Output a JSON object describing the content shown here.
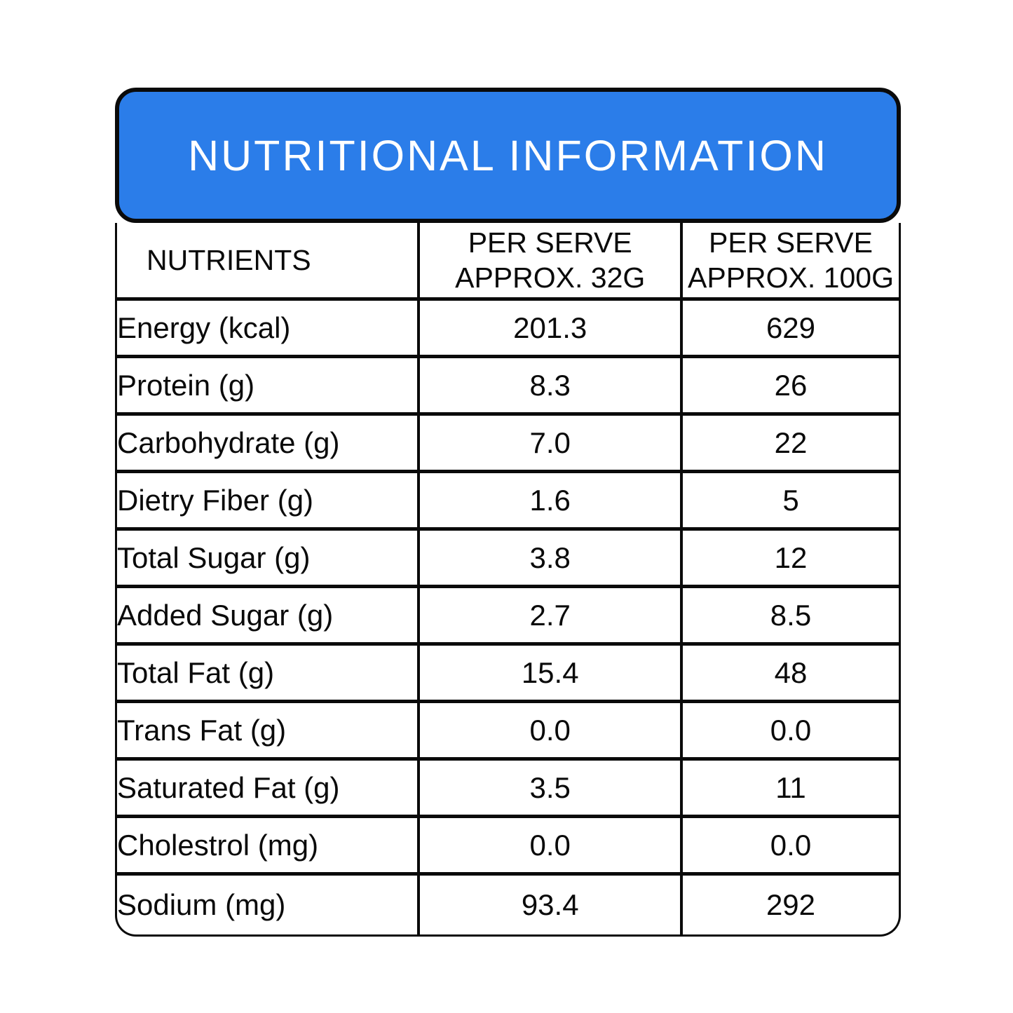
{
  "banner": {
    "title": "NUTRITIONAL INFORMATION",
    "bg_color": "#2B7DE9",
    "border_color": "#0A0A0A",
    "text_color": "#FFFFFF"
  },
  "table": {
    "columns": [
      "NUTRIENTS",
      "PER SERVE\nAPPROX. 32G",
      "PER SERVE\nAPPROX. 100G"
    ],
    "rows": [
      {
        "label": "Energy (kcal)",
        "per_serve_32g": "201.3",
        "per_serve_100g": "629"
      },
      {
        "label": "Protein (g)",
        "per_serve_32g": "8.3",
        "per_serve_100g": "26"
      },
      {
        "label": "Carbohydrate (g)",
        "per_serve_32g": "7.0",
        "per_serve_100g": "22"
      },
      {
        "label": "Dietry Fiber (g)",
        "per_serve_32g": "1.6",
        "per_serve_100g": "5"
      },
      {
        "label": "Total Sugar (g)",
        "per_serve_32g": "3.8",
        "per_serve_100g": "12"
      },
      {
        "label": "Added Sugar (g)",
        "per_serve_32g": "2.7",
        "per_serve_100g": "8.5"
      },
      {
        "label": "Total Fat (g)",
        "per_serve_32g": "15.4",
        "per_serve_100g": "48"
      },
      {
        "label": "Trans Fat (g)",
        "per_serve_32g": "0.0",
        "per_serve_100g": "0.0"
      },
      {
        "label": "Saturated Fat (g)",
        "per_serve_32g": "3.5",
        "per_serve_100g": "11"
      },
      {
        "label": "Cholestrol (mg)",
        "per_serve_32g": "0.0",
        "per_serve_100g": "0.0"
      },
      {
        "label": "Sodium (mg)",
        "per_serve_32g": "93.4",
        "per_serve_100g": "292"
      }
    ]
  }
}
